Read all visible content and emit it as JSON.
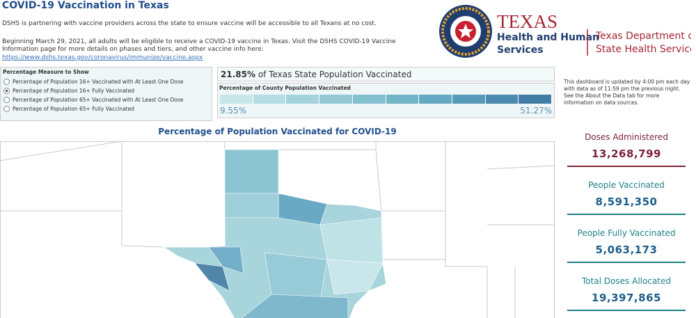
{
  "header": {
    "title": "COVID-19 Vaccination in Texas",
    "intro": "DSHS is partnering with vaccine providers across the state to ensure vaccine will be accessible to all Texans at no cost.",
    "paragraph": "Beginning March 29, 2021, all adults will be eligible to receive a COVID-19 vaccine in Texas. Visit the DSHS COVID-19 Vaccine Information page for more details on phases and tiers, and other vaccine info here:",
    "link": "https://www.dshs.texas.gov/coronavirus/immunize/vaccine.aspx"
  },
  "logo": {
    "hhs": [
      "TEXAS",
      "Health and Human",
      "Services"
    ],
    "dshs": [
      "Texas Department of",
      "State Health Services"
    ]
  },
  "filter": {
    "label": "Percentage Measure to Show",
    "options": [
      "Percentage of Population 16+ Vaccinated with At Least One Dose",
      "Percentage of Population 16+ Fully Vaccinated",
      "Percentage of Population 65+ Vaccinated with At Least One Dose",
      "Percentage of Population 65+ Fully Vaccinated"
    ],
    "selected": 1
  },
  "summary": {
    "value": "21.85%",
    "text": "of Texas State Population Vaccinated"
  },
  "legend": {
    "title": "Percentage of County Population Vaccinated",
    "min": "9.55%",
    "max": "51.27%"
  },
  "note": "This dashboard is updated by 4:00 pm each day with data as of 11:59 pm the previous night. See the About the Data tab for more information on data sources.",
  "map": {
    "title": "Percentage of Population Vaccinated for COVID-19"
  },
  "kpis": [
    {
      "label": "Doses Administered",
      "value": "13,268,799"
    },
    {
      "label": "People Vaccinated",
      "value": "8,591,350"
    },
    {
      "label": "People Fully Vaccinated",
      "value": "5,063,173"
    },
    {
      "label": "Total Doses Allocated",
      "value": "19,397,865"
    }
  ]
}
